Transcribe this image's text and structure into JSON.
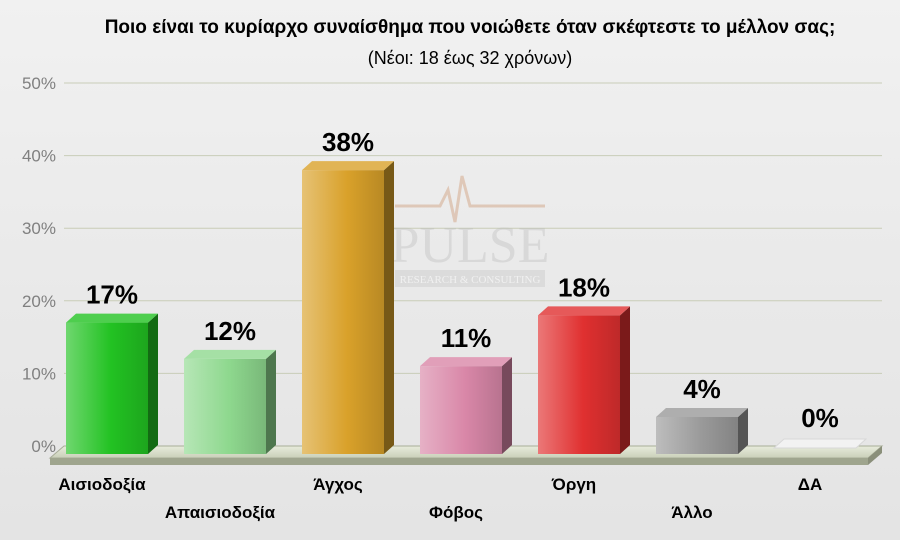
{
  "chart_data": {
    "type": "bar",
    "title": "Ποιο είναι το κυρίαρχο συναίσθημα που νοιώθετε όταν σκέφτεστε το μέλλον σας;",
    "subtitle": "(Νέοι: 18 έως 32 χρόνων)",
    "categories": [
      "Αισιοδοξία",
      "Απαισιοδοξία",
      "Άγχος",
      "Φόβος",
      "Όργη",
      "Άλλο",
      "ΔΑ"
    ],
    "values": [
      17,
      12,
      38,
      11,
      18,
      4,
      0
    ],
    "data_labels": [
      "17%",
      "12%",
      "38%",
      "11%",
      "18%",
      "4%",
      "0%"
    ],
    "y_ticks": [
      "0%",
      "10%",
      "20%",
      "30%",
      "40%",
      "50%"
    ],
    "ylim": [
      0,
      50
    ],
    "grid": true,
    "legend": "none",
    "colors": [
      "#22c222",
      "#8ed88e",
      "#d9a12a",
      "#d987a8",
      "#e03030",
      "#9a9a9a",
      "#f2f2f2"
    ],
    "watermark": "PULSE RESEARCH & CONSULTING"
  }
}
